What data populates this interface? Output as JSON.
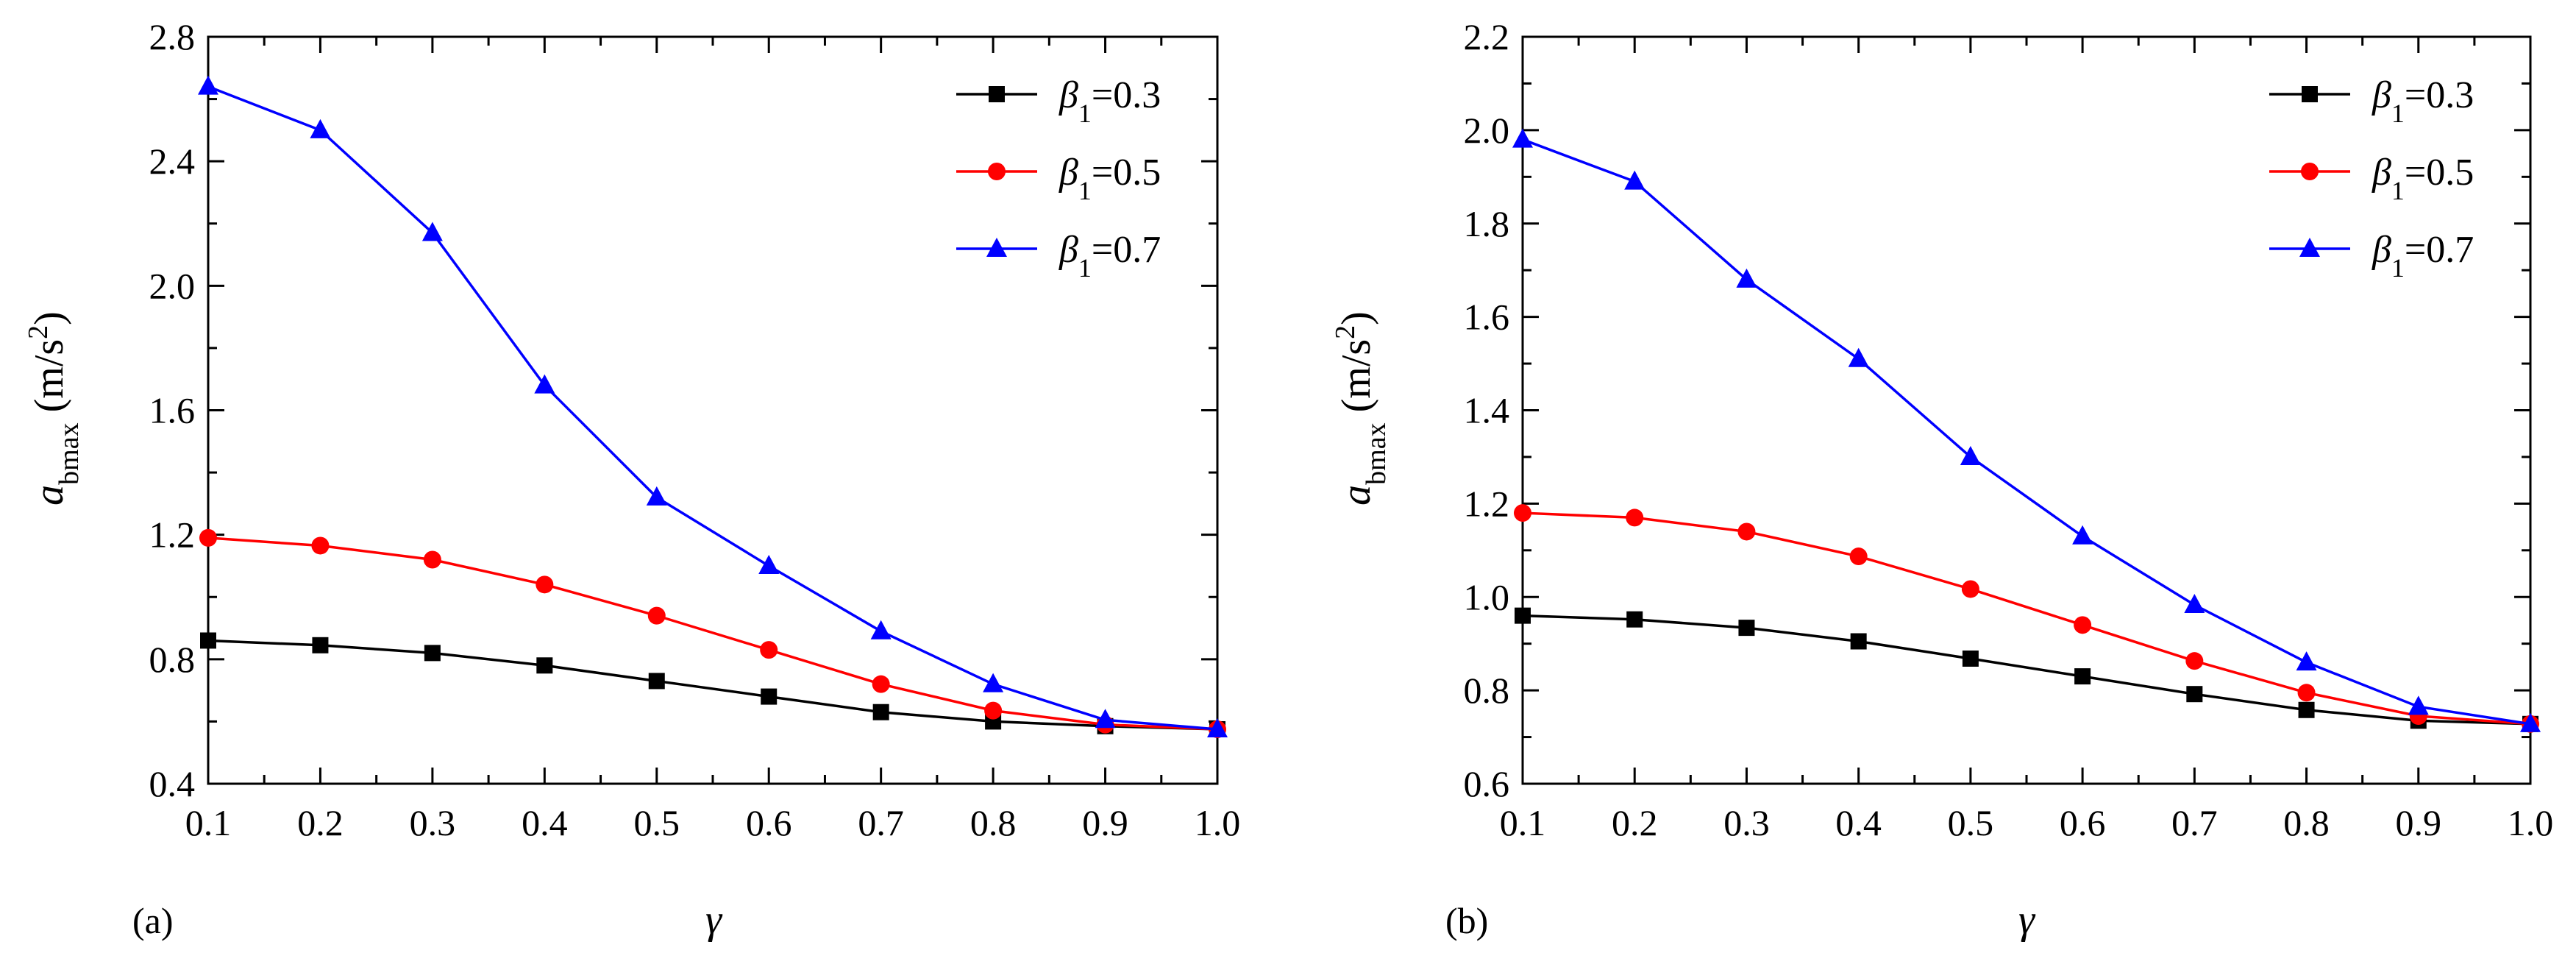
{
  "chart_data": [
    {
      "type": "line",
      "panel_label": "(a)",
      "xlabel": "γ",
      "ylabel": {
        "main": "a",
        "sub": "bmax",
        "unit_prefix": " (m/s",
        "unit_sup": "2",
        "unit_suffix": ")"
      },
      "xlim": [
        0.1,
        1.0
      ],
      "ylim": [
        0.4,
        2.8
      ],
      "x_ticks": [
        "0.1",
        "0.2",
        "0.3",
        "0.4",
        "0.5",
        "0.6",
        "0.7",
        "0.8",
        "0.9",
        "1.0"
      ],
      "y_ticks": [
        "0.4",
        "0.8",
        "1.2",
        "1.6",
        "2.0",
        "2.4",
        "2.8"
      ],
      "y_tick_values": [
        0.4,
        0.8,
        1.2,
        1.6,
        2.0,
        2.4,
        2.8
      ],
      "x": [
        0.1,
        0.2,
        0.3,
        0.4,
        0.5,
        0.6,
        0.7,
        0.8,
        0.9,
        1.0
      ],
      "legend": "top-right",
      "grid": false,
      "series": [
        {
          "name": {
            "sym": "β",
            "sub": "1",
            "rest": "=0.3"
          },
          "color": "#000000",
          "marker": "square",
          "values": [
            0.86,
            0.845,
            0.82,
            0.78,
            0.73,
            0.68,
            0.63,
            0.6,
            0.585,
            0.575
          ]
        },
        {
          "name": {
            "sym": "β",
            "sub": "1",
            "rest": "=0.5"
          },
          "color": "#ff0000",
          "marker": "circle",
          "values": [
            1.19,
            1.165,
            1.12,
            1.04,
            0.94,
            0.83,
            0.72,
            0.635,
            0.59,
            0.575
          ]
        },
        {
          "name": {
            "sym": "β",
            "sub": "1",
            "rest": "=0.7"
          },
          "color": "#0000ff",
          "marker": "triangle",
          "values": [
            2.64,
            2.5,
            2.17,
            1.68,
            1.32,
            1.1,
            0.89,
            0.72,
            0.605,
            0.575
          ]
        }
      ]
    },
    {
      "type": "line",
      "panel_label": "(b)",
      "xlabel": "γ",
      "ylabel": {
        "main": "a",
        "sub": "bmax",
        "unit_prefix": " (m/s",
        "unit_sup": "2",
        "unit_suffix": ")"
      },
      "xlim": [
        0.1,
        1.0
      ],
      "ylim": [
        0.6,
        2.2
      ],
      "x_ticks": [
        "0.1",
        "0.2",
        "0.3",
        "0.4",
        "0.5",
        "0.6",
        "0.7",
        "0.8",
        "0.9",
        "1.0"
      ],
      "y_ticks": [
        "0.6",
        "0.8",
        "1.0",
        "1.2",
        "1.4",
        "1.6",
        "1.8",
        "2.0",
        "2.2"
      ],
      "y_tick_values": [
        0.6,
        0.8,
        1.0,
        1.2,
        1.4,
        1.6,
        1.8,
        2.0,
        2.2
      ],
      "x": [
        0.1,
        0.2,
        0.3,
        0.4,
        0.5,
        0.6,
        0.7,
        0.8,
        0.9,
        1.0
      ],
      "legend": "top-right",
      "grid": false,
      "series": [
        {
          "name": {
            "sym": "β",
            "sub": "1",
            "rest": "=0.3"
          },
          "color": "#000000",
          "marker": "square",
          "values": [
            0.96,
            0.952,
            0.934,
            0.905,
            0.868,
            0.83,
            0.792,
            0.758,
            0.735,
            0.728
          ]
        },
        {
          "name": {
            "sym": "β",
            "sub": "1",
            "rest": "=0.5"
          },
          "color": "#ff0000",
          "marker": "circle",
          "values": [
            1.18,
            1.17,
            1.14,
            1.087,
            1.017,
            0.94,
            0.863,
            0.795,
            0.745,
            0.728
          ]
        },
        {
          "name": {
            "sym": "β",
            "sub": "1",
            "rest": "=0.7"
          },
          "color": "#0000ff",
          "marker": "triangle",
          "values": [
            1.98,
            1.89,
            1.68,
            1.51,
            1.3,
            1.13,
            0.983,
            0.86,
            0.765,
            0.728
          ]
        }
      ]
    }
  ]
}
